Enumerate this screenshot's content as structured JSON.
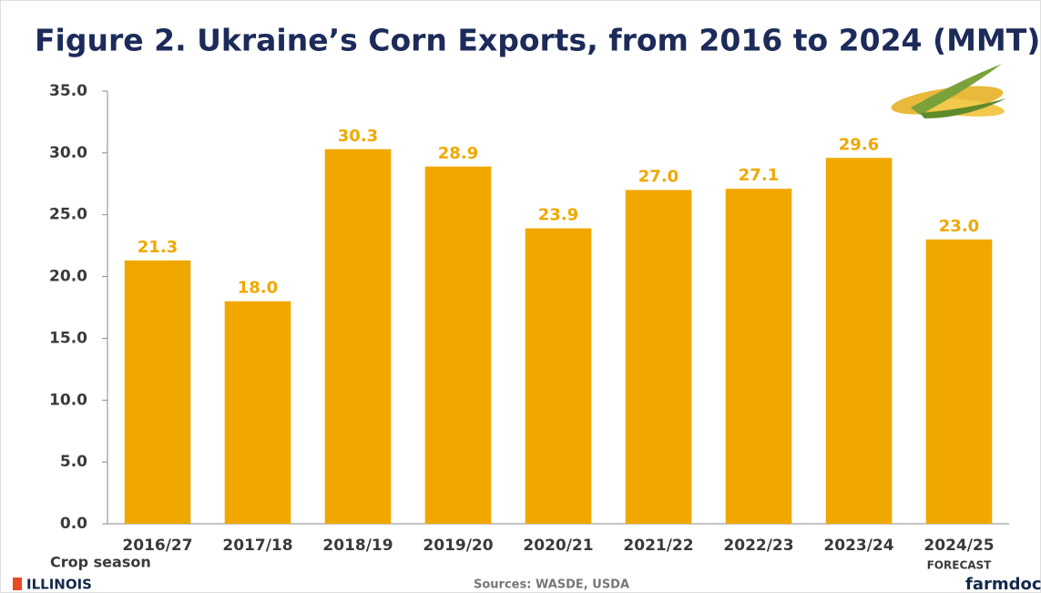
{
  "chart_data": {
    "type": "bar",
    "title": "Figure 2. Ukraine’s Corn Exports, from 2016 to 2024 (MMT)",
    "x_label": "Crop season",
    "source": "Sources: WASDE, USDA",
    "annotation": "FORECAST",
    "logo_left": "ILLINOIS",
    "logo_right": "farmdoc",
    "categories": [
      "2016/27",
      "2017/18",
      "2018/19",
      "2019/20",
      "2020/21",
      "2021/22",
      "2022/23",
      "2023/24",
      "2024/25"
    ],
    "values": [
      21.3,
      18.0,
      30.3,
      28.9,
      23.9,
      27.0,
      27.1,
      29.6,
      23.0
    ],
    "value_labels": [
      "21.3",
      "18.0",
      "30.3",
      "28.9",
      "23.9",
      "27.0",
      "27.1",
      "29.6",
      "23.0"
    ],
    "color": "#f0a800",
    "ylim": [
      0,
      35
    ],
    "yticks": [
      {
        "value": 0,
        "label": "0.0"
      },
      {
        "value": 5,
        "label": "5.0"
      },
      {
        "value": 10,
        "label": "10.0"
      },
      {
        "value": 15,
        "label": "15.0"
      },
      {
        "value": 20,
        "label": "20.0"
      },
      {
        "value": 25,
        "label": "25.0"
      },
      {
        "value": 30,
        "label": "30.0"
      },
      {
        "value": 35,
        "label": "35.0"
      }
    ]
  }
}
